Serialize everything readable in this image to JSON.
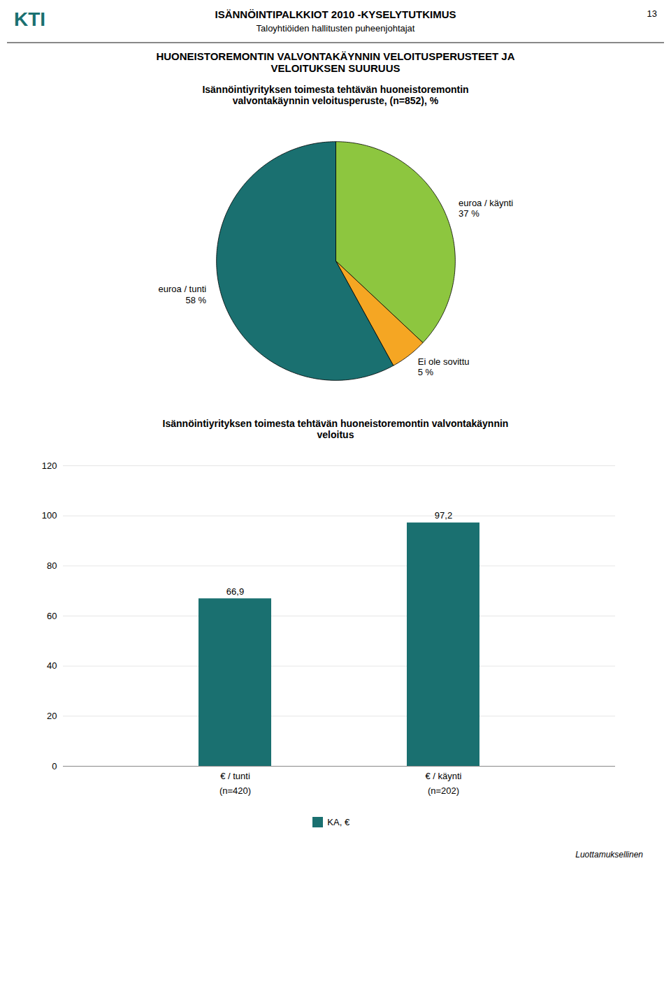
{
  "page": {
    "number": "13",
    "logo_text": "KTI",
    "logo_color": "#1a7070",
    "header_title": "ISÄNNÖINTIPALKKIOT 2010 -KYSELYTUTKIMUS",
    "header_subtitle": "Taloyhtiöiden hallitusten puheenjohtajat",
    "title": "HUONEISTOREMONTIN VALVONTAKÄYNNIN VELOITUSPERUSTEET JA\nVELOITUKSEN SUURUUS",
    "footer": "Luottamuksellinen"
  },
  "chart_data": [
    {
      "type": "pie",
      "title": "Isännöintiyrityksen toimesta tehtävän huoneistoremontin\nvalvontakäynnin veloitusperuste, (n=852), %",
      "categories": [
        "euroa / käynti",
        "Ei ole sovittu",
        "euroa / tunti"
      ],
      "values": [
        37,
        5,
        58
      ],
      "value_labels": [
        "37 %",
        "5 %",
        "58 %"
      ],
      "colors": [
        "#8dc63f",
        "#f5a623",
        "#1a7070"
      ],
      "data_labels": true
    },
    {
      "type": "bar",
      "title": "Isännöintiyrityksen toimesta tehtävän huoneistoremontin valvontakäynnin\nveloitus",
      "categories": [
        "€ / tunti",
        "€ / käynti"
      ],
      "series": [
        {
          "name": "KA, €",
          "color": "#1a7070",
          "values": [
            66.9,
            97.2
          ],
          "value_labels": [
            "66,9",
            "97,2"
          ]
        }
      ],
      "annotations": [
        "(n=420)",
        "(n=202)"
      ],
      "ylim": [
        0,
        120
      ],
      "yticks": [
        0,
        20,
        40,
        60,
        80,
        100,
        120
      ],
      "grid": true,
      "legend": "bottom",
      "data_labels": true
    }
  ]
}
